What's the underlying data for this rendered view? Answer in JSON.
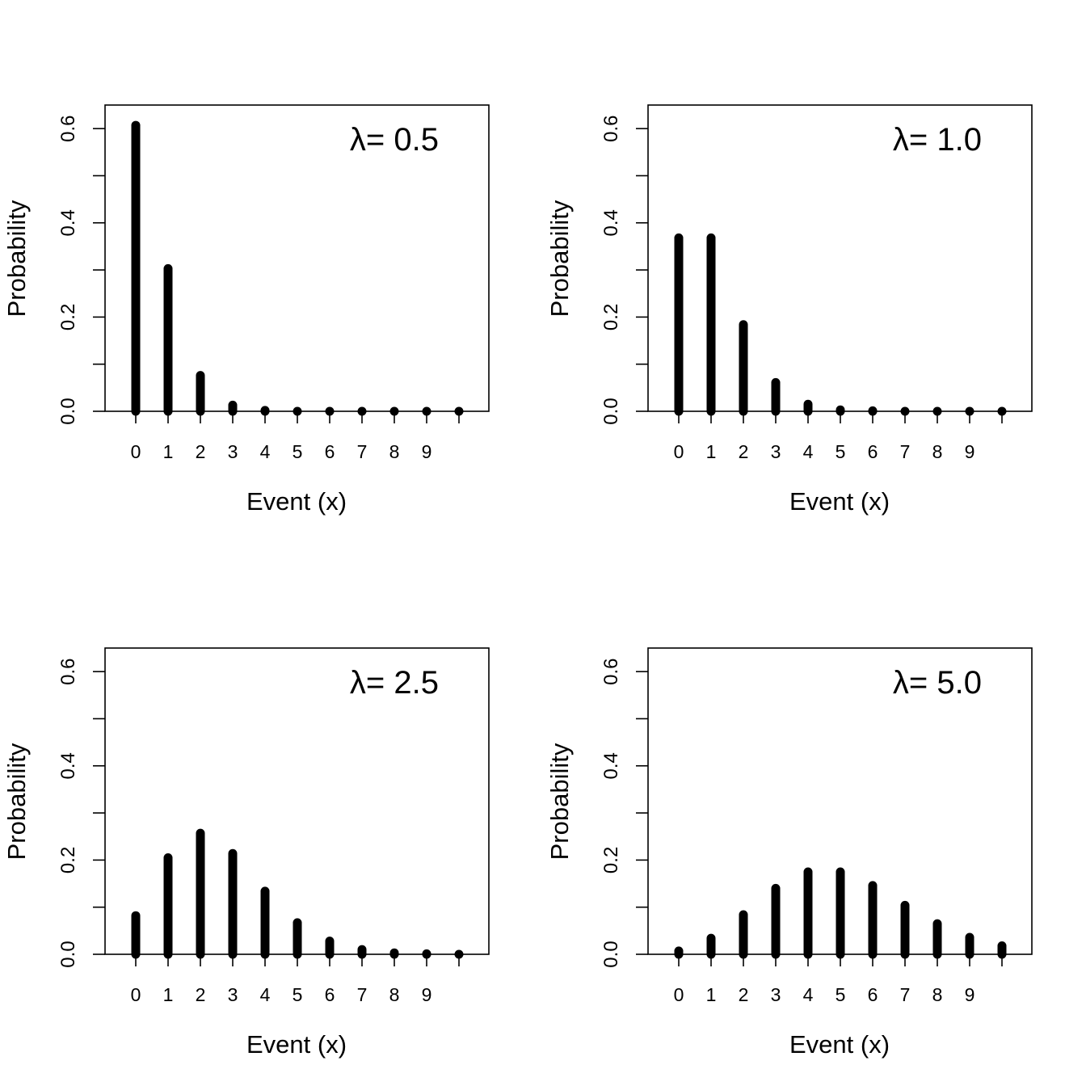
{
  "chart_data": [
    {
      "type": "bar",
      "panel": "top-left",
      "annotation": "λ= 0.5",
      "xlabel": "Event (x)",
      "ylabel": "Probability",
      "x": [
        0,
        1,
        2,
        3,
        4,
        5,
        6,
        7,
        8,
        9,
        10
      ],
      "x_tick_labels": [
        "0",
        "1",
        "2",
        "3",
        "4",
        "5",
        "6",
        "7",
        "8",
        "9"
      ],
      "values": [
        0.607,
        0.303,
        0.076,
        0.013,
        0.002,
        0.0,
        0.0,
        0.0,
        0.0,
        0.0,
        0.0
      ],
      "y_ticks": [
        "0.0",
        "0.2",
        "0.4",
        "0.6"
      ],
      "ylim": [
        0,
        0.65
      ]
    },
    {
      "type": "bar",
      "panel": "top-right",
      "annotation": "λ= 1.0",
      "xlabel": "Event (x)",
      "ylabel": "Probability",
      "x": [
        0,
        1,
        2,
        3,
        4,
        5,
        6,
        7,
        8,
        9,
        10
      ],
      "x_tick_labels": [
        "0",
        "1",
        "2",
        "3",
        "4",
        "5",
        "6",
        "7",
        "8",
        "9"
      ],
      "values": [
        0.368,
        0.368,
        0.184,
        0.061,
        0.015,
        0.003,
        0.001,
        0.0,
        0.0,
        0.0,
        0.0
      ],
      "y_ticks": [
        "0.0",
        "0.2",
        "0.4",
        "0.6"
      ],
      "ylim": [
        0,
        0.65
      ]
    },
    {
      "type": "bar",
      "panel": "bottom-left",
      "annotation": "λ= 2.5",
      "xlabel": "Event (x)",
      "ylabel": "Probability",
      "x": [
        0,
        1,
        2,
        3,
        4,
        5,
        6,
        7,
        8,
        9,
        10
      ],
      "x_tick_labels": [
        "0",
        "1",
        "2",
        "3",
        "4",
        "5",
        "6",
        "7",
        "8",
        "9"
      ],
      "values": [
        0.082,
        0.205,
        0.257,
        0.214,
        0.134,
        0.067,
        0.028,
        0.01,
        0.003,
        0.001,
        0.0
      ],
      "y_ticks": [
        "0.0",
        "0.2",
        "0.4",
        "0.6"
      ],
      "ylim": [
        0,
        0.65
      ]
    },
    {
      "type": "bar",
      "panel": "bottom-right",
      "annotation": "λ= 5.0",
      "xlabel": "Event (x)",
      "ylabel": "Probability",
      "x": [
        0,
        1,
        2,
        3,
        4,
        5,
        6,
        7,
        8,
        9,
        10
      ],
      "x_tick_labels": [
        "0",
        "1",
        "2",
        "3",
        "4",
        "5",
        "6",
        "7",
        "8",
        "9"
      ],
      "values": [
        0.007,
        0.034,
        0.084,
        0.14,
        0.175,
        0.175,
        0.146,
        0.104,
        0.065,
        0.036,
        0.018
      ],
      "y_ticks": [
        "0.0",
        "0.2",
        "0.4",
        "0.6"
      ],
      "ylim": [
        0,
        0.65
      ]
    }
  ]
}
